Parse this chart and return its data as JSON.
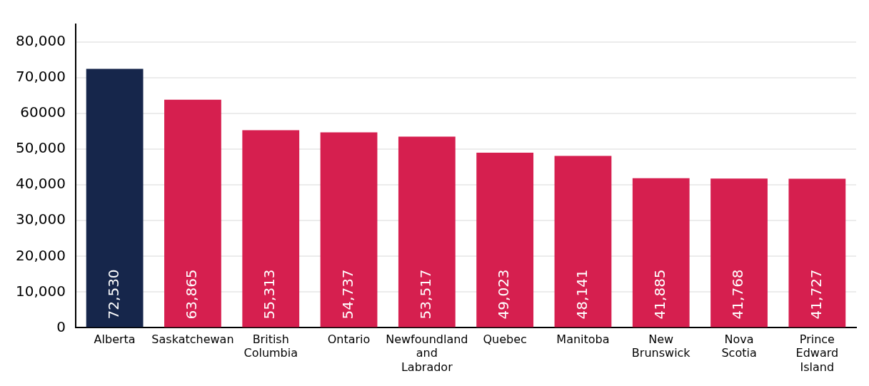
{
  "chart_data": {
    "type": "bar",
    "categories": [
      "Alberta",
      "Saskatchewan",
      "British Columbia",
      "Ontario",
      "Newfoundland and Labrador",
      "Quebec",
      "Manitoba",
      "New Brunswick",
      "Nova Scotia",
      "Prince Edward Island"
    ],
    "values": [
      72530,
      63865,
      55313,
      54737,
      53517,
      49023,
      48141,
      41885,
      41768,
      41727
    ],
    "colors": [
      "#16264b",
      "#d61f4f",
      "#d61f4f",
      "#d61f4f",
      "#d61f4f",
      "#d61f4f",
      "#d61f4f",
      "#d61f4f",
      "#d61f4f",
      "#d61f4f"
    ],
    "ylim": [
      0,
      85000
    ],
    "yticks": [
      {
        "value": 0,
        "label": "0"
      },
      {
        "value": 10000,
        "label": "10,000"
      },
      {
        "value": 20000,
        "label": "20,000"
      },
      {
        "value": 30000,
        "label": "30,000"
      },
      {
        "value": 40000,
        "label": "40,000"
      },
      {
        "value": 50000,
        "label": "50,000"
      },
      {
        "value": 60000,
        "label": "60000"
      },
      {
        "value": 70000,
        "label": "70,000"
      },
      {
        "value": 80000,
        "label": "80,000"
      }
    ],
    "value_labels": [
      "72,530",
      "63,865",
      "55,313",
      "54,737",
      "53,517",
      "49,023",
      "48,141",
      "41,885",
      "41,768",
      "41,727"
    ],
    "grid": "y",
    "legend": false
  }
}
